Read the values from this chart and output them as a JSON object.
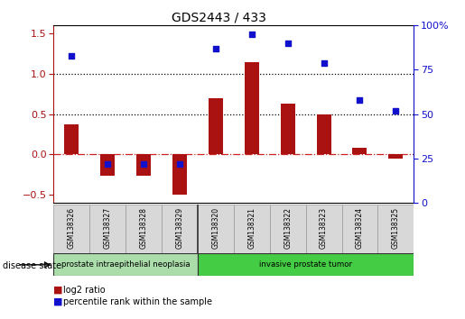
{
  "title": "GDS2443 / 433",
  "samples": [
    "GSM138326",
    "GSM138327",
    "GSM138328",
    "GSM138329",
    "GSM138320",
    "GSM138321",
    "GSM138322",
    "GSM138323",
    "GSM138324",
    "GSM138325"
  ],
  "log2_ratio": [
    0.37,
    -0.27,
    -0.27,
    -0.5,
    0.7,
    1.15,
    0.63,
    0.5,
    0.08,
    -0.05
  ],
  "percentile_rank": [
    83,
    22,
    22,
    22,
    87,
    95,
    90,
    79,
    58,
    52
  ],
  "bar_color": "#aa1111",
  "dot_color": "#1111cc",
  "ylim_left": [
    -0.6,
    1.6
  ],
  "ylim_right": [
    0,
    100
  ],
  "hlines": [
    0.0,
    0.5,
    1.0
  ],
  "hline_colors": [
    "#cc2222",
    "#000000",
    "#000000"
  ],
  "hline_styles": [
    "dashdot",
    "dotted",
    "dotted"
  ],
  "disease_groups": [
    {
      "label": "prostate intraepithelial neoplasia",
      "start": 0,
      "end": 4,
      "color": "#aaddaa"
    },
    {
      "label": "invasive prostate tumor",
      "start": 4,
      "end": 10,
      "color": "#44cc44"
    }
  ],
  "disease_state_label": "disease state",
  "legend_items": [
    {
      "label": "log2 ratio",
      "color": "#aa1111"
    },
    {
      "label": "percentile rank within the sample",
      "color": "#1111cc"
    }
  ],
  "left_yticks": [
    -0.5,
    0.0,
    0.5,
    1.0,
    1.5
  ],
  "right_yticks": [
    0,
    25,
    50,
    75,
    100
  ],
  "right_yticklabels": [
    "0",
    "25",
    "50",
    "75",
    "100%"
  ]
}
